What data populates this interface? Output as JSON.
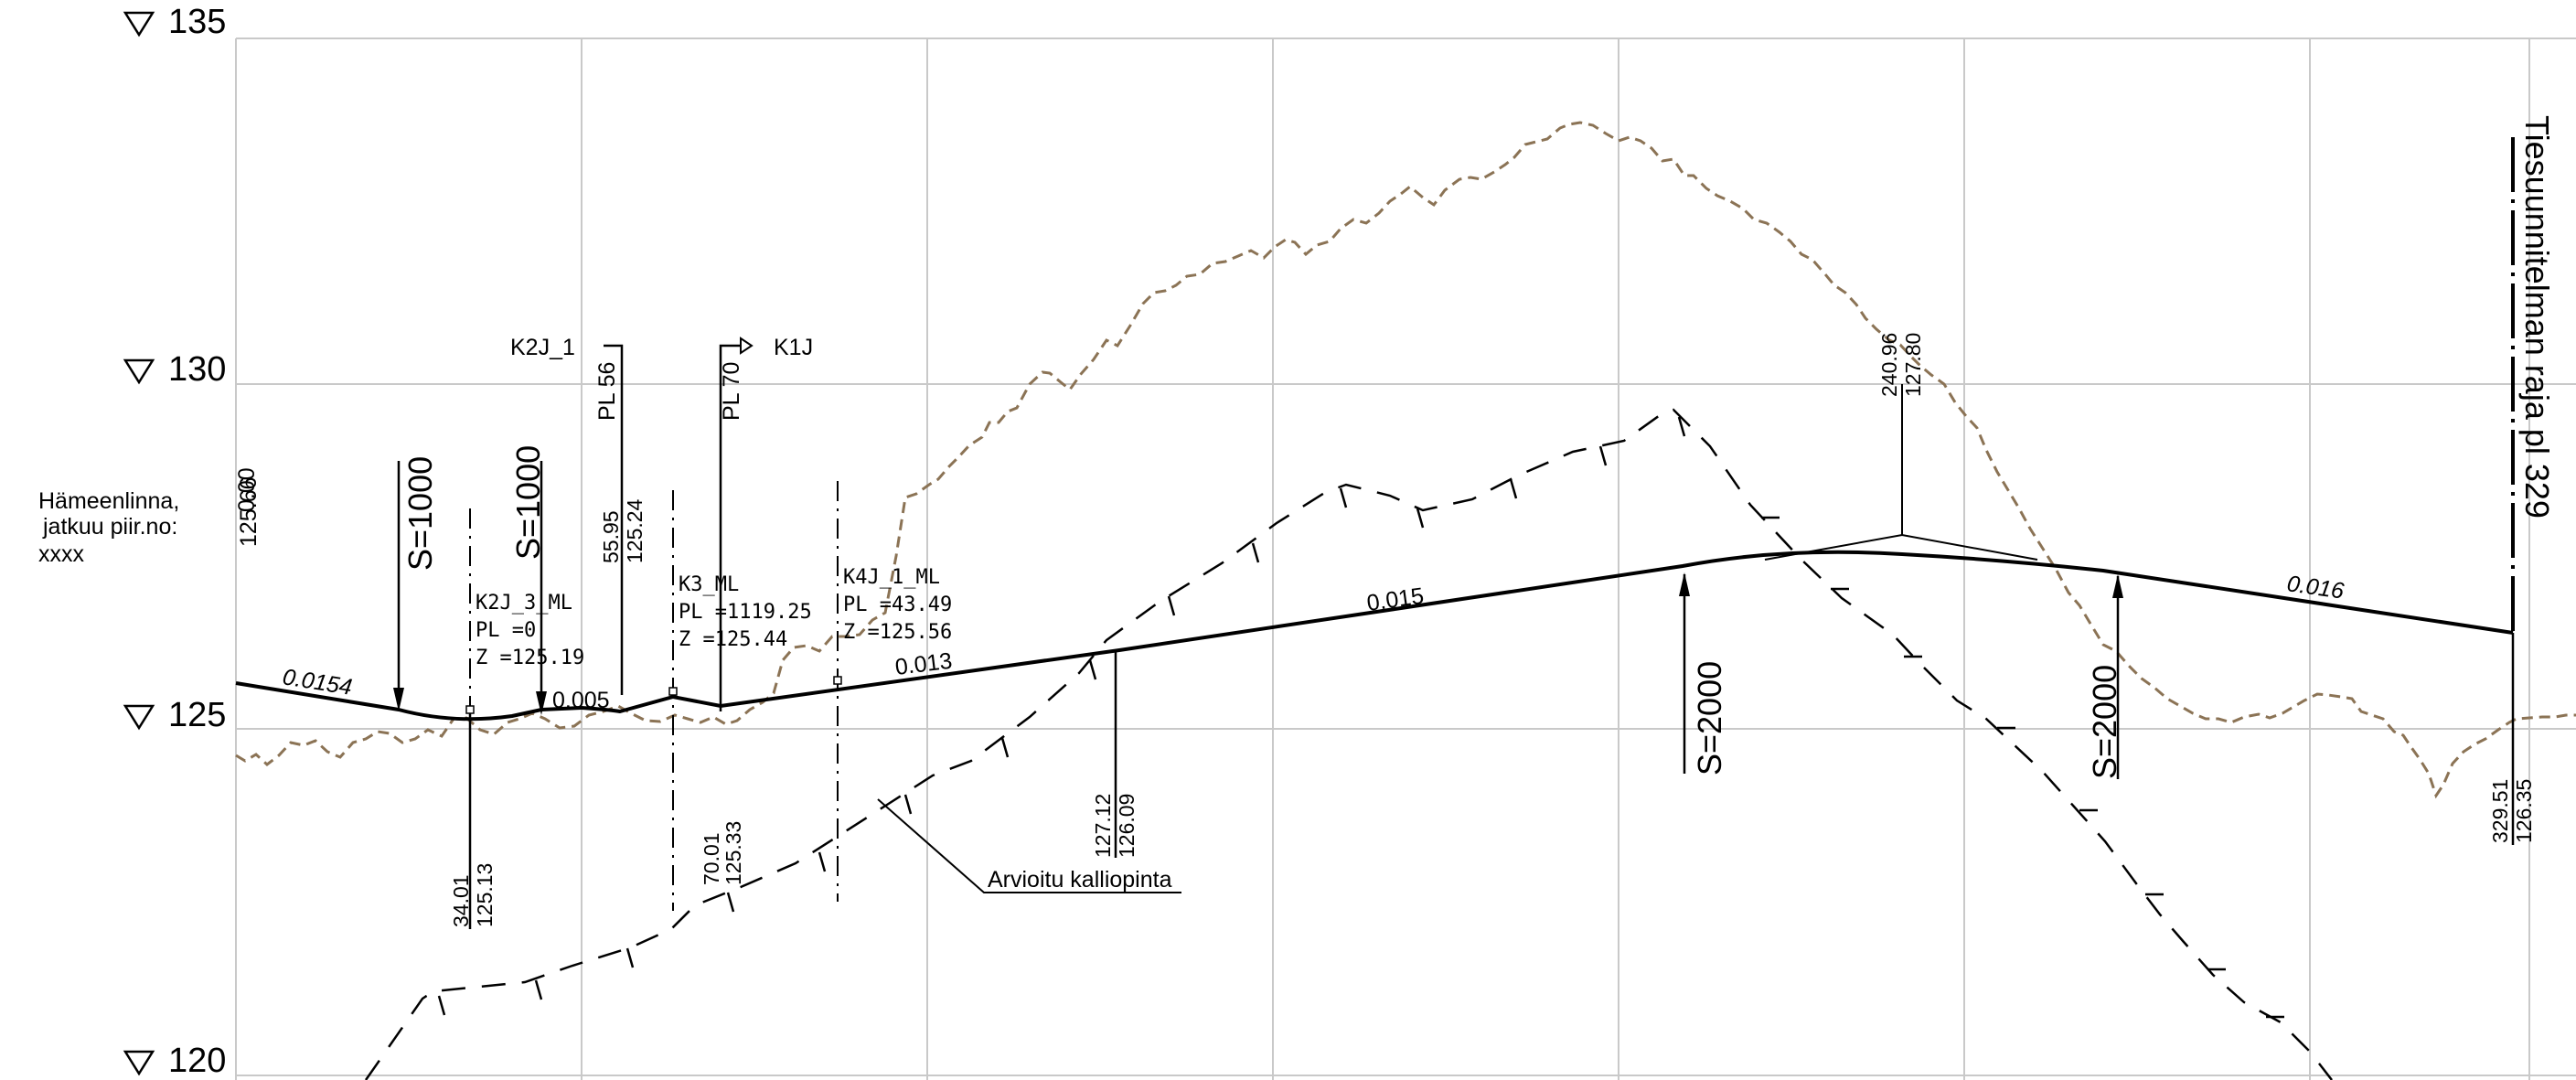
{
  "levels": [
    "135",
    "130",
    "125",
    "120"
  ],
  "start_info": {
    "line1": "Hämeenlinna,",
    "line2": "jatkuu piir.no:",
    "line3": "xxxx",
    "station": "0.00",
    "elevation": "125.66"
  },
  "grades": {
    "g1": "0.0154",
    "g2": "0.005",
    "g3": "0.013",
    "g4": "0.015",
    "g5": "0.016"
  },
  "vertical_curves": {
    "s1": "S=1000",
    "s2": "S=1000",
    "s3": "S=2000",
    "s4": "S=2000"
  },
  "junctions": {
    "k2j_1": "K2J_1",
    "k1j": "K1J",
    "pl56": "PL 56",
    "pl70": "PL 70"
  },
  "stations": {
    "pl56_sta": "55.95",
    "pl56_elev": "125.24",
    "s34_sta": "34.01",
    "s34_elev": "125.13",
    "s70_sta": "70.01",
    "s70_elev": "125.33",
    "s127_sta": "127.12",
    "s127_elev": "126.09",
    "s240_sta": "240.96",
    "s240_elev": "127.80",
    "s329_sta": "329.51",
    "s329_elev": "126.35"
  },
  "markers": {
    "m1_name": "K2J_3_ML",
    "m1_pl": "PL =0",
    "m1_z": "Z =125.19",
    "m2_name": "K3_ML",
    "m2_pl": "PL =1119.25",
    "m2_z": "Z =125.44",
    "m3_name": "K4J_1_ML",
    "m3_pl": "PL =43.49",
    "m3_z": "Z =125.56"
  },
  "rock_label": "Arvioitu kalliopinta",
  "limit_label": "Tiesuunnitelman raja pl 329",
  "colors": {
    "ground": "#8b7355",
    "grid": "#c9c9c9",
    "ink": "#000000"
  }
}
